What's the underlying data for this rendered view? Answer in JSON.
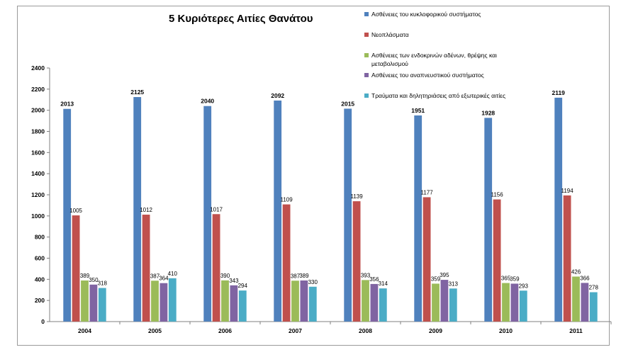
{
  "chart_data": {
    "type": "bar",
    "title": "5 Κυριότερες Αιτίες Θανάτου",
    "xlabel": "",
    "ylabel": "",
    "ylim": [
      0,
      2400
    ],
    "yticks": [
      0,
      200,
      400,
      600,
      800,
      1000,
      1200,
      1400,
      1600,
      1800,
      2000,
      2200,
      2400
    ],
    "grid": false,
    "legend_position": "top-right",
    "categories": [
      "2004",
      "2005",
      "2006",
      "2007",
      "2008",
      "2009",
      "2010",
      "2011"
    ],
    "series": [
      {
        "name": "Ασθένειες του κυκλοφορικού συστήματος",
        "color": "#4f81bd",
        "values": [
          2013,
          2125,
          2040,
          2092,
          2015,
          1951,
          1928,
          2119
        ]
      },
      {
        "name": "Νεοπλάσματα",
        "color": "#c0504d",
        "values": [
          1005,
          1012,
          1017,
          1109,
          1139,
          1177,
          1156,
          1194
        ]
      },
      {
        "name": "Ασθένειες των ενδοκρινών αδένων, θρέψης και μεταβολισμού",
        "color": "#9bbb59",
        "values": [
          389,
          387,
          390,
          387,
          393,
          359,
          365,
          426
        ]
      },
      {
        "name": "Ασθένειες του αναπνευστικού συστήματος",
        "color": "#8064a2",
        "values": [
          350,
          364,
          343,
          389,
          356,
          395,
          359,
          366
        ]
      },
      {
        "name": "Τραύματα και δηλητηριάσεις από εξωτερικές αιτίες",
        "color": "#4bacc6",
        "values": [
          318,
          410,
          294,
          330,
          314,
          313,
          293,
          278
        ]
      }
    ]
  }
}
